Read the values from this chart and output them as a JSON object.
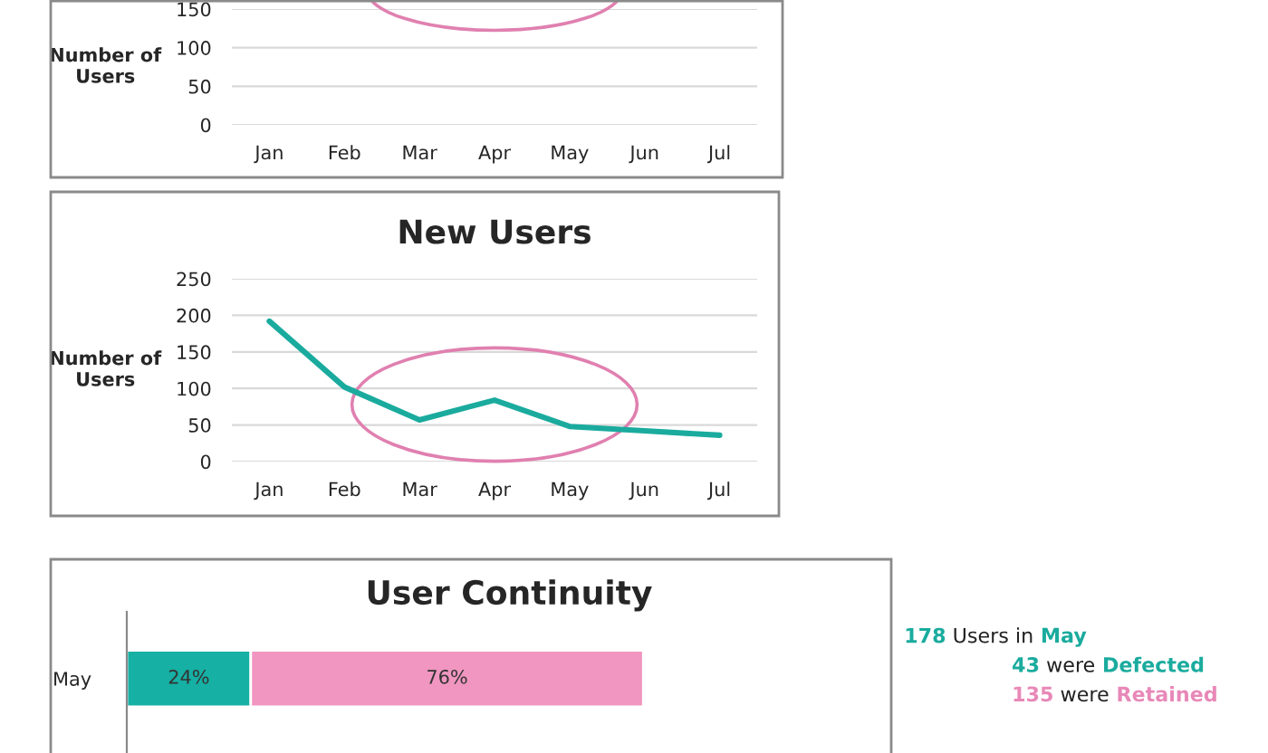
{
  "chart_data": [
    {
      "type": "line",
      "ylabel": "Number of\nUsers",
      "categories": [
        "Jan",
        "Feb",
        "Mar",
        "Apr",
        "May",
        "Jun",
        "Jul"
      ],
      "series": [
        {
          "color": "#1aab9e",
          "values": [
            null,
            null,
            null,
            null,
            null,
            null,
            null
          ]
        }
      ],
      "ylim": [
        0,
        150
      ],
      "yticks": [
        0,
        50,
        100,
        150
      ],
      "grid": "y"
    },
    {
      "type": "line",
      "title": "New Users",
      "ylabel": "Number of\nUsers",
      "categories": [
        "Jan",
        "Feb",
        "Mar",
        "Apr",
        "May",
        "Jun",
        "Jul"
      ],
      "series": [
        {
          "color": "#1aab9e",
          "values": [
            192,
            102,
            57,
            84,
            48,
            42,
            36
          ]
        }
      ],
      "ylim": [
        0,
        250
      ],
      "yticks": [
        0,
        50,
        100,
        150,
        200,
        250
      ],
      "grid": "y"
    },
    {
      "type": "bar",
      "title": "User Continuity",
      "orientation": "horizontal",
      "stacked": true,
      "categories": [
        "May"
      ],
      "xlim": [
        0,
        148
      ],
      "tick_labels": "y",
      "series": [
        {
          "color": "#16b0a4",
          "values": [
            24
          ],
          "value_labels": [
            "24%"
          ]
        },
        {
          "color": "#f096c0",
          "values": [
            76
          ],
          "value_labels": [
            "76%"
          ]
        }
      ]
    },
    {
      "type": "other",
      "annotations": [
        "178 Users in May",
        "43 were Defected",
        "135 were Retained"
      ],
      "colors": [
        "#1aab9e",
        "#1aab9e",
        "#e888b8"
      ]
    }
  ]
}
